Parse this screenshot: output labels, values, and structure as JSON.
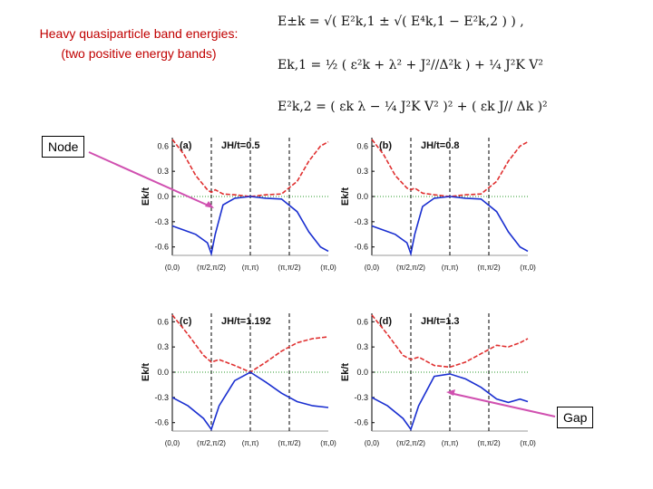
{
  "title": {
    "line1": "Heavy quasiparticle band energies:",
    "line2": "(two positive energy bands)"
  },
  "equations": {
    "eq1": "E±k = √( E²k,1 ± √( E⁴k,1 − E²k,2 ) ) ,",
    "eq2": "Ek,1 = ½ ( ε²k + λ² + J²//Δ²k ) + ¼ J²K V²",
    "eq3": "E²k,2 = ( εk λ − ¼ J²K V² )² + ( εk J// Δk )²"
  },
  "callouts": {
    "node": "Node",
    "gap": "Gap"
  },
  "colors": {
    "title": "#c00000",
    "upper_band": "#e03030",
    "lower_band": "#1a2fd0",
    "arrow": "#d050b0",
    "zero_line": "#2a9a2a"
  },
  "x_tick_labels": [
    "(0,0)",
    "(π/2,π/2)",
    "(π,π)",
    "(π,π/2)",
    "(π,0)"
  ],
  "y_tick_labels": [
    "0.6",
    "0.3",
    "0.0",
    "-0.3",
    "-0.6"
  ],
  "ylabel": "Ek/t",
  "chart_data": [
    {
      "type": "line",
      "panel": "(a)",
      "annotation": "JH/t=0.5",
      "categories": [
        "(0,0)",
        "(π/2,π/2)",
        "(π,π)",
        "(π,π/2)",
        "(π,0)"
      ],
      "ylim": [
        -0.7,
        0.7
      ],
      "series": [
        {
          "x": [
            0,
            0.3,
            0.6,
            0.9,
            1.0,
            1.1,
            1.3,
            1.6,
            2.0,
            2.4,
            2.8,
            3.2,
            3.5,
            3.8,
            4.0
          ],
          "values": [
            0.68,
            0.5,
            0.25,
            0.08,
            0.05,
            0.08,
            0.03,
            0.02,
            0.0,
            0.02,
            0.03,
            0.18,
            0.42,
            0.6,
            0.65
          ]
        },
        {
          "x": [
            0,
            0.3,
            0.6,
            0.9,
            1.0,
            1.1,
            1.3,
            1.6,
            2.0,
            2.4,
            2.8,
            3.2,
            3.5,
            3.8,
            4.0
          ],
          "values": [
            -0.35,
            -0.4,
            -0.45,
            -0.55,
            -0.68,
            -0.45,
            -0.1,
            -0.02,
            0.0,
            -0.02,
            -0.03,
            -0.18,
            -0.42,
            -0.6,
            -0.65
          ]
        }
      ]
    },
    {
      "type": "line",
      "panel": "(b)",
      "annotation": "JH/t=0.8",
      "categories": [
        "(0,0)",
        "(π/2,π/2)",
        "(π,π)",
        "(π,π/2)",
        "(π,0)"
      ],
      "ylim": [
        -0.7,
        0.7
      ],
      "series": [
        {
          "x": [
            0,
            0.3,
            0.6,
            0.9,
            1.0,
            1.1,
            1.3,
            1.6,
            2.0,
            2.4,
            2.8,
            3.2,
            3.5,
            3.8,
            4.0
          ],
          "values": [
            0.68,
            0.5,
            0.25,
            0.1,
            0.08,
            0.1,
            0.04,
            0.02,
            0.0,
            0.02,
            0.03,
            0.18,
            0.42,
            0.6,
            0.65
          ]
        },
        {
          "x": [
            0,
            0.3,
            0.6,
            0.9,
            1.0,
            1.1,
            1.3,
            1.6,
            2.0,
            2.4,
            2.8,
            3.2,
            3.5,
            3.8,
            4.0
          ],
          "values": [
            -0.35,
            -0.4,
            -0.45,
            -0.55,
            -0.68,
            -0.45,
            -0.12,
            -0.02,
            0.0,
            -0.02,
            -0.03,
            -0.18,
            -0.42,
            -0.6,
            -0.65
          ]
        }
      ]
    },
    {
      "type": "line",
      "panel": "(c)",
      "annotation": "JH/t=1.192",
      "categories": [
        "(0,0)",
        "(π/2,π/2)",
        "(π,π)",
        "(π,π/2)",
        "(π,0)"
      ],
      "ylim": [
        -0.7,
        0.7
      ],
      "series": [
        {
          "x": [
            0,
            0.4,
            0.8,
            1.0,
            1.2,
            1.6,
            2.0,
            2.4,
            2.8,
            3.2,
            3.6,
            4.0
          ],
          "values": [
            0.68,
            0.45,
            0.2,
            0.12,
            0.15,
            0.08,
            0.0,
            0.12,
            0.25,
            0.35,
            0.4,
            0.42
          ]
        },
        {
          "x": [
            0,
            0.4,
            0.8,
            1.0,
            1.2,
            1.6,
            2.0,
            2.4,
            2.8,
            3.2,
            3.6,
            4.0
          ],
          "values": [
            -0.3,
            -0.4,
            -0.55,
            -0.68,
            -0.4,
            -0.1,
            0.0,
            -0.12,
            -0.25,
            -0.35,
            -0.4,
            -0.42
          ]
        }
      ]
    },
    {
      "type": "line",
      "panel": "(d)",
      "annotation": "JH/t=1.3",
      "categories": [
        "(0,0)",
        "(π/2,π/2)",
        "(π,π)",
        "(π,π/2)",
        "(π,0)"
      ],
      "ylim": [
        -0.7,
        0.7
      ],
      "series": [
        {
          "x": [
            0,
            0.4,
            0.8,
            1.0,
            1.2,
            1.6,
            2.0,
            2.4,
            2.8,
            3.2,
            3.5,
            3.8,
            4.0
          ],
          "values": [
            0.68,
            0.45,
            0.2,
            0.15,
            0.18,
            0.08,
            0.06,
            0.12,
            0.22,
            0.32,
            0.3,
            0.35,
            0.4
          ]
        },
        {
          "x": [
            0,
            0.4,
            0.8,
            1.0,
            1.2,
            1.6,
            2.0,
            2.4,
            2.8,
            3.2,
            3.5,
            3.8,
            4.0
          ],
          "values": [
            -0.3,
            -0.4,
            -0.55,
            -0.68,
            -0.4,
            -0.05,
            -0.02,
            -0.08,
            -0.18,
            -0.32,
            -0.36,
            -0.32,
            -0.35
          ]
        }
      ]
    }
  ]
}
